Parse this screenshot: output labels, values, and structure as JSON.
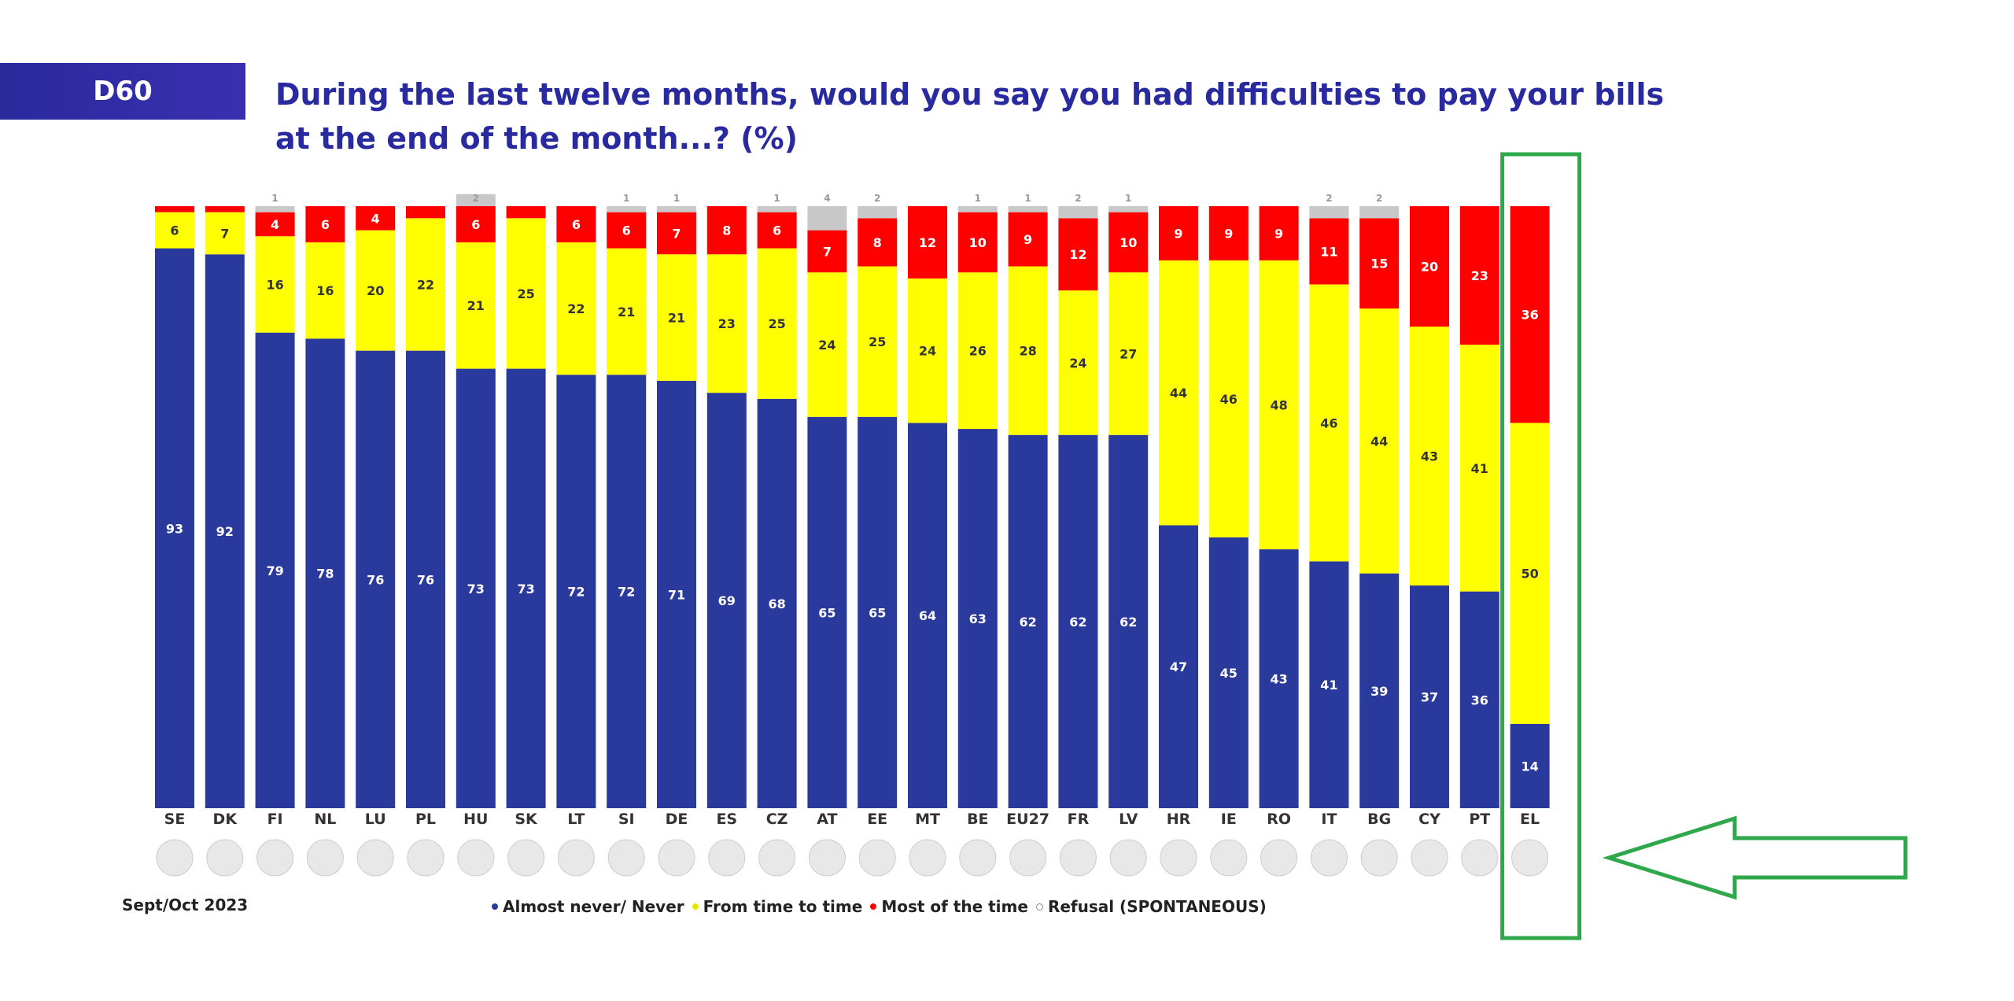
{
  "header": {
    "code": "D60",
    "title_line1": "During the last twelve months, would you say you had difficulties to pay your bills",
    "title_line2": "at the end of the month...? (%)"
  },
  "footer": {
    "source": "Sept/Oct 2023"
  },
  "colors": {
    "never": "#2a3a9c",
    "time": "#ffff00",
    "most": "#ff0000",
    "refusal": "#c8c8c8",
    "highlight": "#2ea84a",
    "title": "#2a2aa0"
  },
  "chart_data": {
    "type": "bar",
    "stacked": true,
    "ylim": [
      0,
      100
    ],
    "legend_position": "bottom",
    "categories": [
      "SE",
      "DK",
      "FI",
      "NL",
      "LU",
      "PL",
      "HU",
      "SK",
      "LT",
      "SI",
      "DE",
      "ES",
      "CZ",
      "AT",
      "EE",
      "MT",
      "BE",
      "EU27",
      "FR",
      "LV",
      "HR",
      "IE",
      "RO",
      "IT",
      "BG",
      "CY",
      "PT",
      "EL"
    ],
    "flag_icons": [
      "flag-se-icon",
      "flag-dk-icon",
      "flag-fi-icon",
      "flag-nl-icon",
      "flag-lu-icon",
      "flag-pl-icon",
      "flag-hu-icon",
      "flag-sk-icon",
      "flag-lt-icon",
      "flag-si-icon",
      "flag-de-icon",
      "flag-es-icon",
      "flag-cz-icon",
      "flag-at-icon",
      "flag-ee-icon",
      "flag-mt-icon",
      "flag-be-icon",
      "flag-eu-icon",
      "flag-fr-icon",
      "flag-lv-icon",
      "flag-hr-icon",
      "flag-ie-icon",
      "flag-ro-icon",
      "flag-it-icon",
      "flag-bg-icon",
      "flag-cy-icon",
      "flag-pt-icon",
      "flag-gr-icon"
    ],
    "series": [
      {
        "name": "Almost never/ Never",
        "key": "never",
        "values": [
          93,
          92,
          79,
          78,
          76,
          76,
          73,
          73,
          72,
          72,
          71,
          69,
          68,
          65,
          65,
          64,
          63,
          62,
          62,
          62,
          47,
          45,
          43,
          41,
          39,
          37,
          36,
          14
        ]
      },
      {
        "name": "From time to time",
        "key": "time",
        "values": [
          6,
          7,
          16,
          16,
          20,
          22,
          21,
          25,
          22,
          21,
          21,
          23,
          25,
          24,
          25,
          24,
          26,
          28,
          24,
          27,
          44,
          46,
          48,
          46,
          44,
          43,
          41,
          50
        ]
      },
      {
        "name": "Most of the time",
        "key": "most",
        "values": [
          1,
          1,
          4,
          6,
          4,
          2,
          6,
          2,
          6,
          6,
          7,
          8,
          6,
          7,
          8,
          12,
          10,
          9,
          12,
          10,
          9,
          9,
          9,
          11,
          15,
          20,
          23,
          36
        ]
      },
      {
        "name": "Refusal (SPONTANEOUS)",
        "key": "refusal",
        "values": [
          0,
          0,
          1,
          0,
          0,
          0,
          2,
          0,
          0,
          1,
          1,
          0,
          1,
          4,
          2,
          0,
          1,
          1,
          2,
          1,
          0,
          0,
          0,
          2,
          2,
          0,
          0,
          0
        ]
      }
    ],
    "labels": {
      "never": [
        "93",
        "92",
        "79",
        "78",
        "76",
        "76",
        "73",
        "73",
        "72",
        "72",
        "71",
        "69",
        "68",
        "65",
        "65",
        "64",
        "63",
        "62",
        "62",
        "62",
        "47",
        "45",
        "43",
        "41",
        "39",
        "37",
        "36",
        "14"
      ],
      "time": [
        "6",
        "7",
        "16",
        "16",
        "20",
        "22",
        "21",
        "25",
        "22",
        "21",
        "21",
        "23",
        "25",
        "24",
        "25",
        "24",
        "26",
        "28",
        "24",
        "27",
        "44",
        "46",
        "48",
        "46",
        "44",
        "43",
        "41",
        "50"
      ],
      "most": [
        "",
        "",
        "4",
        "6",
        "4",
        "",
        "6",
        "",
        "6",
        "6",
        "7",
        "8",
        "6",
        "7",
        "8",
        "12",
        "10",
        "9",
        "12",
        "10",
        "9",
        "9",
        "9",
        "11",
        "15",
        "20",
        "23",
        "36"
      ],
      "refusal": [
        "",
        "",
        "1",
        "",
        "",
        "",
        "2",
        "",
        "",
        "1",
        "1",
        "",
        "1",
        "4",
        "2",
        "",
        "1",
        "1",
        "2",
        "1",
        "",
        "",
        "",
        "2",
        "2",
        "",
        "",
        ""
      ]
    },
    "highlight_category": "EL"
  }
}
